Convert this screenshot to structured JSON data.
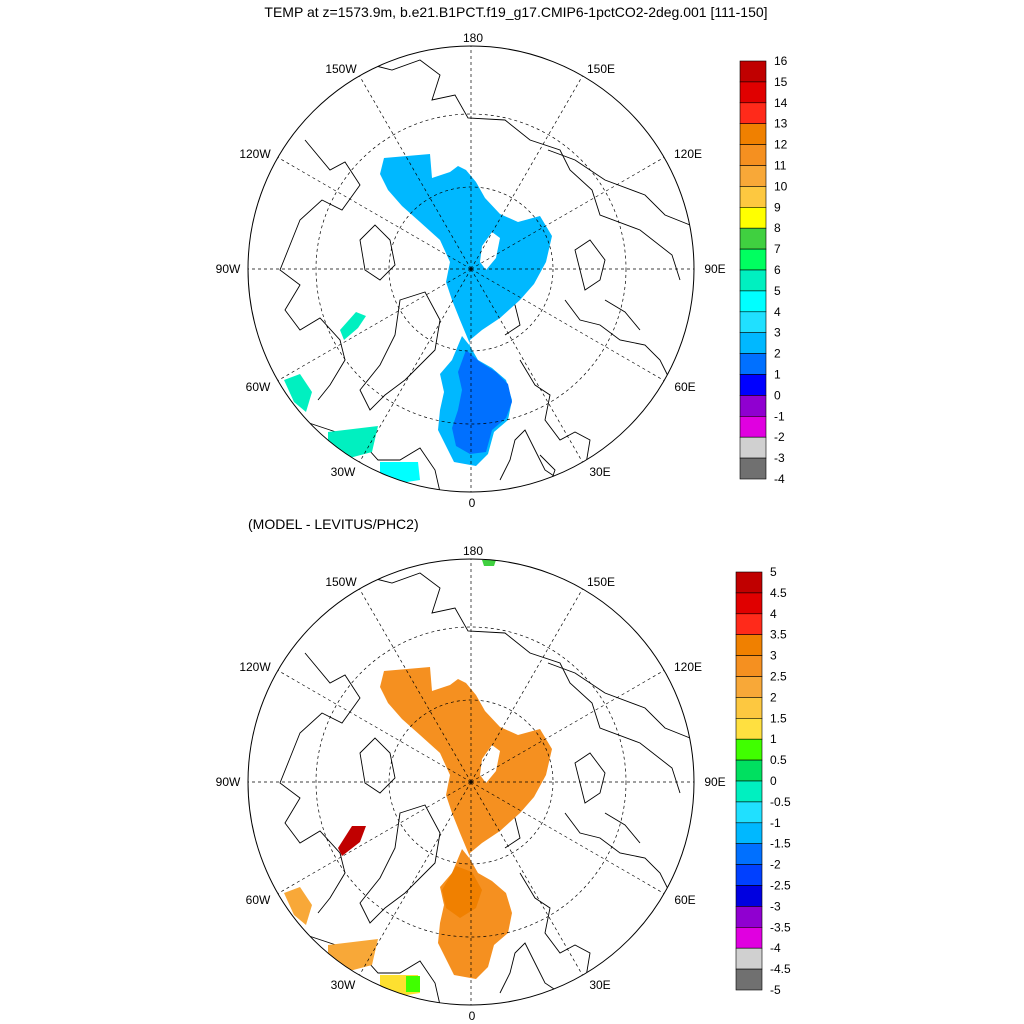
{
  "figure": {
    "title": "TEMP at z=1573.9m, b.e21.B1PCT.f19_g17.CMIP6-1pctCO2-2deg.001 [111-150]",
    "subtitle": "(MODEL - LEVITUS/PHC2)"
  },
  "map": {
    "projection": "north-polar-stereographic",
    "longitude_labels": [
      "180",
      "150E",
      "120E",
      "90E",
      "60E",
      "30E",
      "0",
      "30W",
      "60W",
      "90W",
      "120W",
      "150W"
    ]
  },
  "panels": [
    {
      "name": "model-temperature",
      "colorbar": {
        "labels": [
          "16",
          "15",
          "14",
          "13",
          "12",
          "11",
          "10",
          "9",
          "8",
          "7",
          "6",
          "5",
          "4",
          "3",
          "2",
          "1",
          "0",
          "-1",
          "-2",
          "-3",
          "-4"
        ],
        "colors": [
          "#c00000",
          "#e00000",
          "#ff2a1a",
          "#f08000",
          "#f59020",
          "#f8a838",
          "#fdc840",
          "#ffff00",
          "#40d040",
          "#00ff60",
          "#00f0c0",
          "#00ffff",
          "#20e0ff",
          "#00b8ff",
          "#0070ff",
          "#0000ff",
          "#9000d0",
          "#e000e0",
          "#d0d0d0",
          "#707070"
        ]
      }
    },
    {
      "name": "model-minus-levitus",
      "colorbar": {
        "labels": [
          "5",
          "4.5",
          "4",
          "3.5",
          "3",
          "2.5",
          "2",
          "1.5",
          "1",
          "0.5",
          "0",
          "-0.5",
          "-1",
          "-1.5",
          "-2",
          "-2.5",
          "-3",
          "-3.5",
          "-4",
          "-4.5",
          "-5"
        ],
        "colors": [
          "#c00000",
          "#e00000",
          "#ff2a1a",
          "#f08000",
          "#f59020",
          "#f8a838",
          "#fdc840",
          "#ffe040",
          "#40ff00",
          "#00e060",
          "#00f0c0",
          "#20e0ff",
          "#00b8ff",
          "#0070ff",
          "#0040ff",
          "#0000e0",
          "#9000d0",
          "#e000e0",
          "#d0d0d0",
          "#707070"
        ]
      }
    }
  ]
}
